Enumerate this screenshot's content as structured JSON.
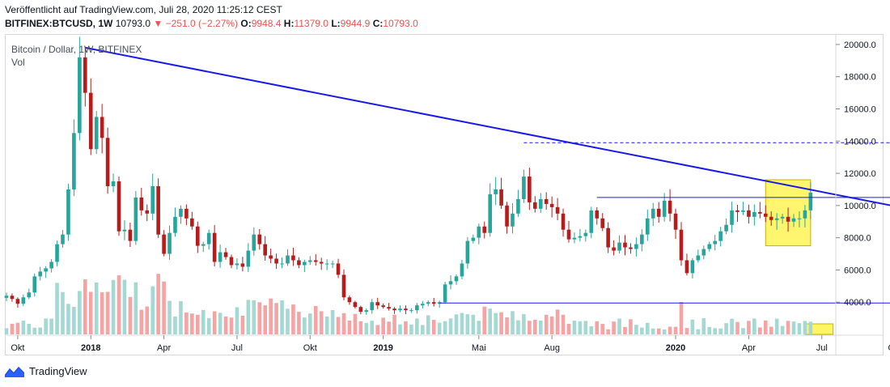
{
  "header": {
    "published": "Veröffentlicht auf TradingView.com, Juli 28, 2020 11:25:12 CEST",
    "symbol": "BITFINEX:BTCUSD, 1W",
    "last": "10793.0",
    "change": "−251.0 (−2.27%)",
    "o_label": "O:",
    "o_value": "9948.4",
    "h_label": "H:",
    "h_value": "11379.0",
    "l_label": "L:",
    "l_value": "9944.9",
    "c_label": "C:",
    "c_value": "10793.0",
    "change_arrow": "▼"
  },
  "brand": {
    "name": "TradingView",
    "icon": "tradingview-logo-icon"
  },
  "colors": {
    "up": "#26a69a",
    "down": "#b71c1c",
    "vol_up": "#a3d9d2",
    "vol_down": "#f5a3a3",
    "trend": "#1a1ae6",
    "highlight": "#fff34a"
  },
  "chart_data": {
    "type": "candlestick",
    "title": "Bitcoin / Dollar, 1W, BITFINEX",
    "subtitle": "Vol",
    "interval": "1W",
    "ylim": [
      2000,
      20600
    ],
    "y_ticks": [
      "20000.0",
      "18000.0",
      "16000.0",
      "14000.0",
      "12000.0",
      "10000.0",
      "8000.0",
      "6000.0",
      "4000.0"
    ],
    "x_ticks": [
      {
        "label": "Okt",
        "week": 2
      },
      {
        "label": "2018",
        "week": 15,
        "bold": true
      },
      {
        "label": "Apr",
        "week": 28
      },
      {
        "label": "Jul",
        "week": 41
      },
      {
        "label": "Okt",
        "week": 54
      },
      {
        "label": "2019",
        "week": 67,
        "bold": true
      },
      {
        "label": "Mai",
        "week": 84
      },
      {
        "label": "Aug",
        "week": 97
      },
      {
        "label": "2020",
        "week": 119,
        "bold": true
      },
      {
        "label": "Apr",
        "week": 132
      },
      {
        "label": "Jul",
        "week": 145
      },
      {
        "label": "Okt",
        "week": 158
      }
    ],
    "closes": [
      4400,
      4200,
      3900,
      4300,
      4600,
      5600,
      5900,
      6100,
      6500,
      7600,
      8200,
      11000,
      14500,
      19200,
      17000,
      13500,
      15500,
      14200,
      11200,
      11500,
      8400,
      8500,
      7800,
      10500,
      9700,
      9500,
      11200,
      8200,
      7000,
      8300,
      9300,
      9800,
      9200,
      8700,
      7500,
      7600,
      8300,
      6500,
      7100,
      6800,
      6300,
      6400,
      6200,
      7200,
      8200,
      7600,
      6900,
      6700,
      6400,
      6400,
      6900,
      6600,
      6300,
      6500,
      6600,
      6500,
      6400,
      6400,
      6400,
      5700,
      4300,
      4000,
      3700,
      3400,
      3500,
      4000,
      3800,
      3700,
      3600,
      3500,
      3600,
      3500,
      3500,
      3800,
      3900,
      4000,
      3900,
      4000,
      5100,
      5300,
      5600,
      6400,
      7800,
      8000,
      8700,
      8300,
      10700,
      11000,
      10000,
      8700,
      9500,
      10400,
      11800,
      10200,
      9800,
      10400,
      10100,
      9900,
      9500,
      8500,
      7900,
      8000,
      8100,
      8300,
      9700,
      9200,
      8600,
      7400,
      7200,
      7700,
      7400,
      7300,
      7600,
      8200,
      9200,
      9800,
      9300,
      10300,
      9500,
      8500,
      6600,
      5800,
      6600,
      6900,
      7300,
      7600,
      7800,
      8400,
      8800,
      9700,
      9600,
      9700,
      9300,
      9600,
      9500,
      9300,
      9100,
      9200,
      9300,
      9000,
      9200,
      9200,
      9700,
      10793
    ],
    "trendline_desc": {
      "from": {
        "week": 14,
        "y": 19800
      },
      "to": {
        "week": 172,
        "y": 9000
      }
    },
    "resistance": {
      "from_week": 105,
      "to_week": 175,
      "y": 10500
    },
    "support": {
      "from_week": 77,
      "to_week": 174,
      "y": 3950
    },
    "high_dashed": {
      "from_week": 92,
      "to_week": 172,
      "y": 13900
    },
    "highlight_box": {
      "from_week": 135,
      "to_week": 143,
      "y_top": 11600,
      "y_bottom": 7500
    },
    "volume_highlight": {
      "from_week": 142,
      "to_week": 147
    }
  }
}
